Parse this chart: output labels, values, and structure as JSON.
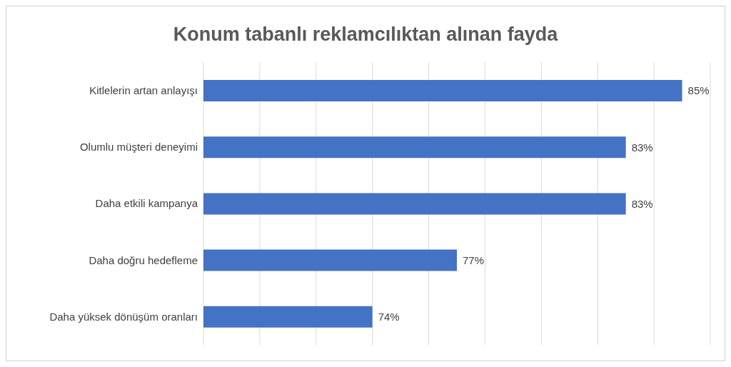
{
  "chart_data": {
    "type": "bar",
    "orientation": "horizontal",
    "title": "Konum tabanlı reklamcılıktan alınan fayda",
    "categories": [
      "Kitlelerin artan anlayışı",
      "Olumlu müşteri deneyimi",
      "Daha etkili kampanya",
      "Daha doğru hedefleme",
      "Daha yüksek dönüşüm oranları"
    ],
    "values": [
      85,
      83,
      83,
      77,
      74
    ],
    "value_labels": [
      "85%",
      "83%",
      "83%",
      "77%",
      "74%"
    ],
    "color": "#4472c4",
    "xlim": [
      68,
      86
    ],
    "xticks": [
      {
        "value": 68,
        "label": null
      },
      {
        "value": 70,
        "label": null
      },
      {
        "value": 72,
        "label": null
      },
      {
        "value": 74,
        "label": null
      },
      {
        "value": 76,
        "label": null
      },
      {
        "value": 78,
        "label": null
      },
      {
        "value": 80,
        "label": null
      },
      {
        "value": 82,
        "label": null
      },
      {
        "value": 84,
        "label": null
      },
      {
        "value": 86,
        "label": null
      }
    ],
    "grid": "x",
    "tick_labels": "y",
    "legend": false
  }
}
